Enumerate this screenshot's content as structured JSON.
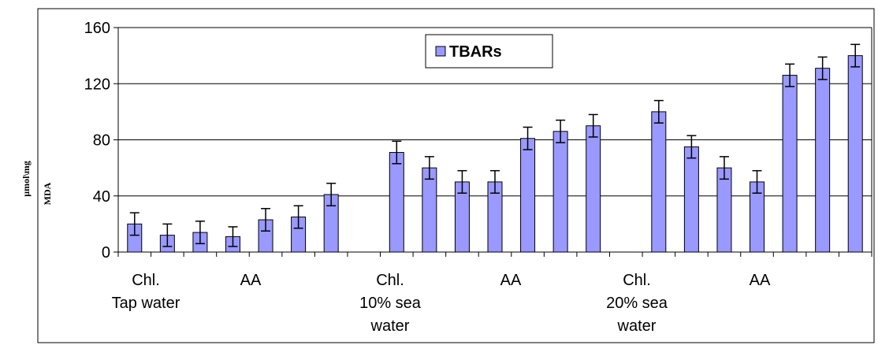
{
  "chart_data": {
    "type": "bar",
    "ylabel_lines": [
      "µmol\\mg",
      "MDA"
    ],
    "ylim": [
      0,
      160
    ],
    "yticks": [
      0,
      40,
      80,
      120,
      160
    ],
    "legend": {
      "label": "TBARs",
      "position": "top-center"
    },
    "bar_color": "#9999ff",
    "grid": true,
    "series": [
      {
        "name": "TBARs",
        "values": [
          20,
          12,
          14,
          11,
          23,
          25,
          41,
          null,
          71,
          60,
          50,
          50,
          81,
          86,
          90,
          null,
          100,
          75,
          60,
          50,
          126,
          131,
          140
        ],
        "errors": [
          8,
          8,
          8,
          7,
          8,
          8,
          8,
          null,
          8,
          8,
          8,
          8,
          8,
          8,
          8,
          null,
          8,
          8,
          8,
          8,
          8,
          8,
          8
        ]
      }
    ],
    "x_labels": [
      {
        "lines": [
          "Chl.",
          "Tap water"
        ]
      },
      {
        "lines": [
          "AA"
        ]
      },
      {
        "lines": [
          "Chl.",
          "10% sea",
          "water"
        ]
      },
      {
        "lines": [
          "AA"
        ]
      },
      {
        "lines": [
          "Chl.",
          "20% sea",
          "water"
        ]
      },
      {
        "lines": [
          "AA"
        ]
      }
    ]
  }
}
